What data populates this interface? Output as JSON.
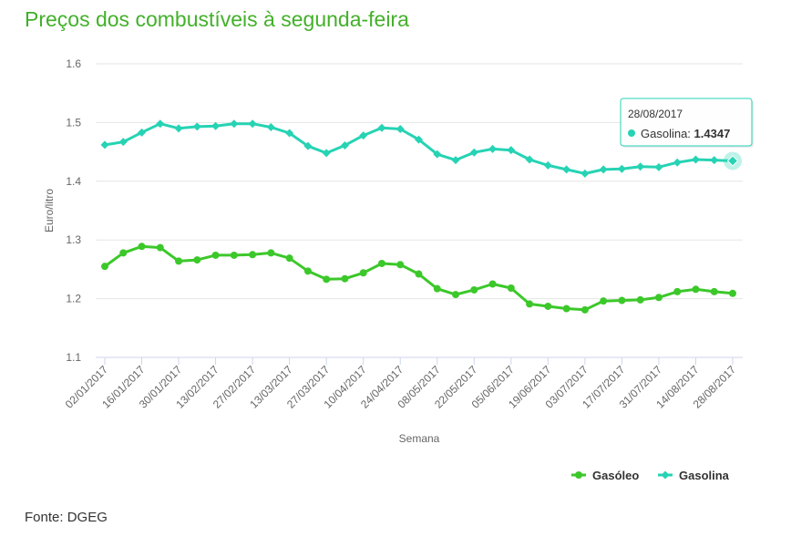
{
  "title": "Preços dos combustíveis à segunda-feira",
  "source": "Fonte: DGEG",
  "chart_data": {
    "type": "line",
    "title": "Preços dos combustíveis à segunda-feira",
    "xlabel": "Semana",
    "ylabel": "Euro/litro",
    "ylim": [
      1.1,
      1.6
    ],
    "yticks": [
      "1.1",
      "1.2",
      "1.3",
      "1.4",
      "1.5",
      "1.6"
    ],
    "grid": true,
    "legend_position": "bottom-right",
    "x": [
      "02/01/2017",
      "09/01/2017",
      "16/01/2017",
      "23/01/2017",
      "30/01/2017",
      "06/02/2017",
      "13/02/2017",
      "20/02/2017",
      "27/02/2017",
      "06/03/2017",
      "13/03/2017",
      "20/03/2017",
      "27/03/2017",
      "03/04/2017",
      "10/04/2017",
      "17/04/2017",
      "24/04/2017",
      "01/05/2017",
      "08/05/2017",
      "15/05/2017",
      "22/05/2017",
      "29/05/2017",
      "05/06/2017",
      "12/06/2017",
      "19/06/2017",
      "26/06/2017",
      "03/07/2017",
      "10/07/2017",
      "17/07/2017",
      "24/07/2017",
      "31/07/2017",
      "07/08/2017",
      "14/08/2017",
      "21/08/2017",
      "28/08/2017"
    ],
    "xtick_labels": [
      "02/01/2017",
      "16/01/2017",
      "30/01/2017",
      "13/02/2017",
      "27/02/2017",
      "13/03/2017",
      "27/03/2017",
      "10/04/2017",
      "24/04/2017",
      "08/05/2017",
      "22/05/2017",
      "05/06/2017",
      "19/06/2017",
      "03/07/2017",
      "17/07/2017",
      "31/07/2017",
      "14/08/2017",
      "28/08/2017"
    ],
    "series": [
      {
        "name": "Gasóleo",
        "color": "#3cc82a",
        "marker": "circle",
        "values": [
          1.255,
          1.278,
          1.289,
          1.287,
          1.264,
          1.266,
          1.274,
          1.274,
          1.275,
          1.278,
          1.269,
          1.247,
          1.233,
          1.234,
          1.244,
          1.26,
          1.258,
          1.242,
          1.217,
          1.207,
          1.215,
          1.225,
          1.218,
          1.191,
          1.187,
          1.183,
          1.181,
          1.196,
          1.197,
          1.198,
          1.202,
          1.212,
          1.216,
          1.212,
          1.209
        ]
      },
      {
        "name": "Gasolina",
        "color": "#26d3b4",
        "marker": "diamond",
        "values": [
          1.462,
          1.467,
          1.483,
          1.498,
          1.49,
          1.493,
          1.494,
          1.498,
          1.498,
          1.492,
          1.482,
          1.46,
          1.448,
          1.461,
          1.478,
          1.491,
          1.489,
          1.471,
          1.446,
          1.436,
          1.449,
          1.455,
          1.453,
          1.437,
          1.427,
          1.42,
          1.413,
          1.42,
          1.421,
          1.425,
          1.424,
          1.432,
          1.437,
          1.436,
          1.4347
        ]
      }
    ],
    "tooltip": {
      "date": "28/08/2017",
      "series": "Gasolina",
      "label": "Gasolina: ",
      "value": "1.4347"
    }
  }
}
